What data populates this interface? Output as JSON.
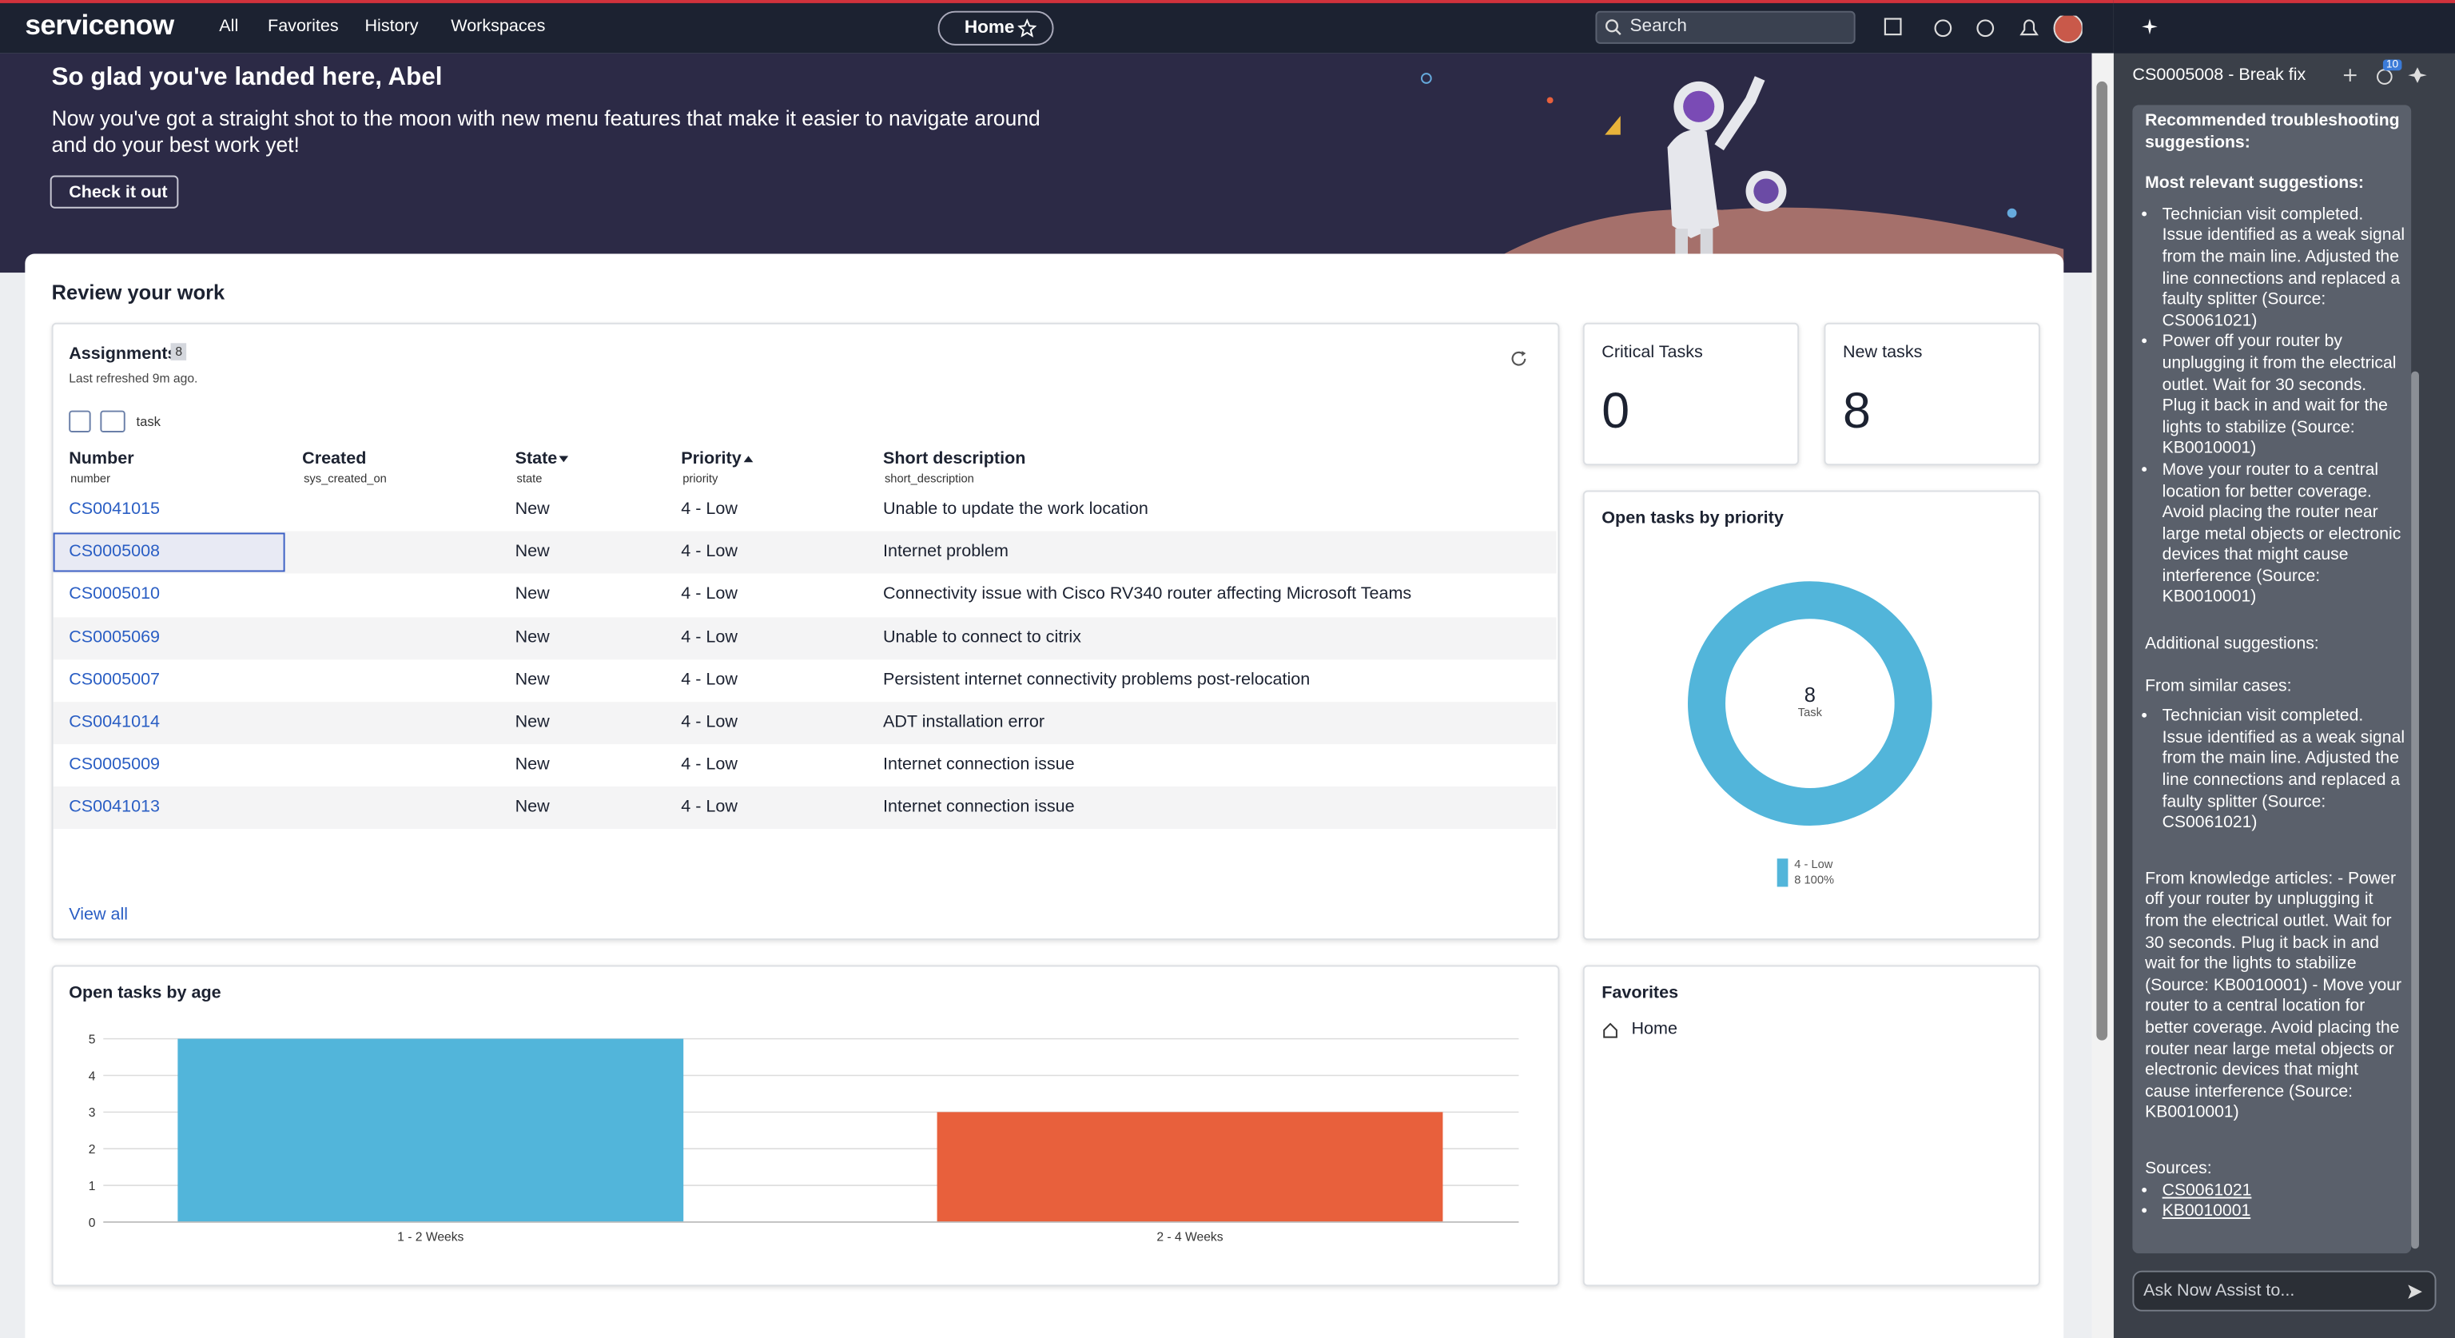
{
  "nav": {
    "logo": "servicenow",
    "links": [
      "All",
      "Favorites",
      "History",
      "Workspaces"
    ],
    "home": "Home",
    "search": "Search"
  },
  "banner": {
    "title": "So glad you've landed here, Abel",
    "text": "Now you've got a straight shot to the moon with new menu features that make it easier to navigate around and do your best work yet!",
    "button": "Check it out"
  },
  "review": {
    "title": "Review your work"
  },
  "assignments": {
    "title": "Assignments",
    "count": 8,
    "refreshed": "Last refreshed 9m ago.",
    "filter_label": "task",
    "columns": [
      {
        "label": "Number",
        "field": "number"
      },
      {
        "label": "Created",
        "field": "sys_created_on"
      },
      {
        "label": "State",
        "field": "state"
      },
      {
        "label": "Priority",
        "field": "priority"
      },
      {
        "label": "Short description",
        "field": "short_description"
      }
    ],
    "rows": [
      {
        "number": "CS0041015",
        "state": "New",
        "priority": "4 - Low",
        "description": "Unable to update the work location"
      },
      {
        "number": "CS0005008",
        "state": "New",
        "priority": "4 - Low",
        "description": "Internet problem"
      },
      {
        "number": "CS0005010",
        "state": "New",
        "priority": "4 - Low",
        "description": "Connectivity issue with Cisco RV340 router affecting Microsoft Teams"
      },
      {
        "number": "CS0005069",
        "state": "New",
        "priority": "4 - Low",
        "description": "Unable to connect to citrix"
      },
      {
        "number": "CS0005007",
        "state": "New",
        "priority": "4 - Low",
        "description": "Persistent internet connectivity problems post-relocation"
      },
      {
        "number": "CS0041014",
        "state": "New",
        "priority": "4 - Low",
        "description": "ADT installation error"
      },
      {
        "number": "CS0005009",
        "state": "New",
        "priority": "4 - Low",
        "description": "Internet connection issue"
      },
      {
        "number": "CS0041013",
        "state": "New",
        "priority": "4 - Low",
        "description": "Internet connection issue"
      }
    ],
    "view_all": "View all"
  },
  "critical": {
    "label": "Critical Tasks",
    "value": 0
  },
  "new_tasks": {
    "label": "New tasks",
    "value": 8
  },
  "priority_chart": {
    "type": "donut",
    "title": "Open tasks by priority",
    "total": 8,
    "center_label": "Task",
    "categories": [
      "4 - Low"
    ],
    "values": [
      8
    ],
    "value_labels": [
      "8 100%"
    ],
    "colors": [
      "#52b5da"
    ]
  },
  "age_chart": {
    "type": "bar",
    "title": "Open tasks by age",
    "categories": [
      "1 - 2 Weeks",
      "2 - 4 Weeks"
    ],
    "values": [
      5,
      3
    ],
    "colors": [
      "#52b5da",
      "#e8603c"
    ],
    "ylim": [
      0,
      5
    ],
    "yticks": [
      0,
      1,
      2,
      3,
      4,
      5
    ],
    "grid": true
  },
  "favorites": {
    "title": "Favorites",
    "items": [
      "Home"
    ]
  },
  "assist": {
    "case_title": "CS0005008 - Break fix",
    "badge": 10,
    "heading": "Recommended troubleshooting suggestions:",
    "most_relevant": "Most relevant suggestions:",
    "most_relevant_items": [
      "Technician visit completed. Issue identified as a weak signal from the main line. Adjusted the line connections and replaced a faulty splitter (Source: CS0061021)",
      "Power off your router by unplugging it from the electrical outlet. Wait for 30 seconds. Plug it back in and wait for the lights to stabilize (Source: KB0010001)",
      "Move your router to a central location for better coverage. Avoid placing the router near large metal objects or electronic devices that might cause interference (Source: KB0010001)"
    ],
    "additional": "Additional suggestions:",
    "similar": "From similar cases:",
    "similar_items": [
      "Technician visit completed. Issue identified as a weak signal from the main line. Adjusted the line connections and replaced a faulty splitter (Source: CS0061021)"
    ],
    "knowledge": "From knowledge articles: - Power off your router by unplugging it from the electrical outlet. Wait for 30 seconds. Plug it back in and wait for the lights to stabilize (Source: KB0010001) - Move your router to a central location for better coverage. Avoid placing the router near large metal objects or electronic devices that might cause interference (Source: KB0010001)",
    "sources_label": "Sources:",
    "sources": [
      "CS0061021",
      "KB0010001"
    ],
    "input_placeholder": "Ask Now Assist to..."
  }
}
